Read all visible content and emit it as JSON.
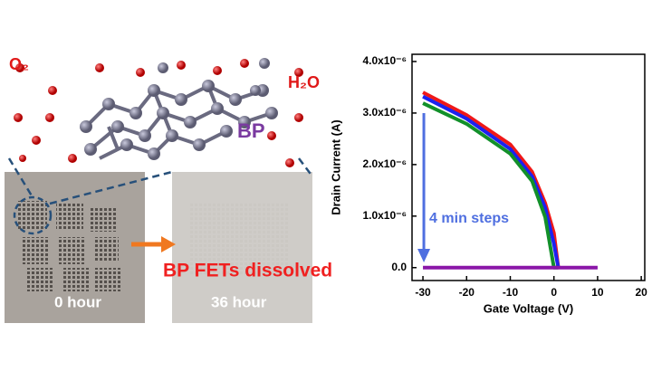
{
  "illustration": {
    "oxygen": "O₂",
    "water": "H₂O",
    "material": "BP"
  },
  "photos": {
    "before": "0 hour",
    "after": "36 hour",
    "caption": "BP FETs dissolved"
  },
  "chart_data": {
    "type": "line",
    "x_label": "Gate Voltage (V)",
    "y_label": "Drain Current (A)",
    "annotation": "4 min steps",
    "annotation_color": "#4f6fe0",
    "x": [
      -30,
      -20,
      -10,
      -5,
      -2,
      0,
      1,
      10
    ],
    "series": [
      {
        "color": "#f01818",
        "values": [
          3.4e-06,
          2.96e-06,
          2.39e-06,
          1.86e-06,
          1.25e-06,
          6.7e-07,
          0,
          null
        ]
      },
      {
        "color": "#1c22f0",
        "values": [
          3.32e-06,
          2.89e-06,
          2.3e-06,
          1.77e-06,
          1.16e-06,
          4.6e-07,
          0,
          null
        ]
      },
      {
        "color": "#12902a",
        "values": [
          3.19e-06,
          2.79e-06,
          2.21e-06,
          1.68e-06,
          9.8e-07,
          0,
          0,
          null
        ]
      },
      {
        "color": "#8a16a8",
        "values": [
          0,
          0,
          0,
          0,
          0,
          0,
          0,
          0
        ]
      }
    ],
    "xlim": [
      -32.5,
      20.8
    ],
    "xticks": [
      -30,
      -20,
      -10,
      0,
      10,
      20
    ],
    "ylim": [
      -2.5e-07,
      4.14e-06
    ],
    "yticks": [
      {
        "value": 0,
        "label": "0.0"
      },
      {
        "value": 1e-06,
        "label": "1.0x10⁻⁶"
      },
      {
        "value": 2e-06,
        "label": "2.0x10⁻⁶"
      },
      {
        "value": 3e-06,
        "label": "3.0x10⁻⁶"
      },
      {
        "value": 4e-06,
        "label": "4.0x10⁻⁶"
      }
    ]
  }
}
